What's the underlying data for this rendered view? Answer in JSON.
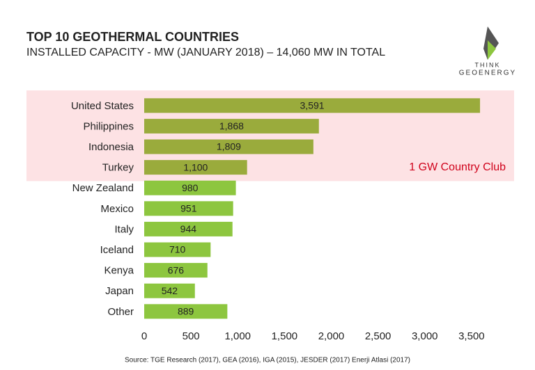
{
  "chart_data": {
    "type": "hbar",
    "title": "TOP 10 GEOTHERMAL COUNTRIES",
    "subtitle": "INSTALLED CAPACITY - MW (JANUARY 2018) – 14,060 MW IN TOTAL",
    "logo": [
      "THINK",
      "GEOENERGY"
    ],
    "source": "Source: TGE Research (2017), GEA (2016), IGA (2015), JESDER (2017) Enerji Atlasi (2017)",
    "categories": [
      "United States",
      "Philippines",
      "Indonesia",
      "Turkey",
      "New Zealand",
      "Mexico",
      "Italy",
      "Iceland",
      "Kenya",
      "Japan",
      "Other"
    ],
    "values": [
      3591,
      1868,
      1809,
      1100,
      980,
      951,
      944,
      710,
      676,
      542,
      889
    ],
    "value_labels": [
      "3,591",
      "1,868",
      "1,809",
      "1,100",
      "980",
      "951",
      "944",
      "710",
      "676",
      "542",
      "889"
    ],
    "colors": [
      "#9aab3c",
      "#9aab3c",
      "#9aab3c",
      "#9aab3c",
      "#8dc63f",
      "#8dc63f",
      "#8dc63f",
      "#8dc63f",
      "#8dc63f",
      "#8dc63f",
      "#8dc63f"
    ],
    "highlight": {
      "text": "1 GW Country Club",
      "text_color": "#d0021b",
      "band_color": "#fde2e4",
      "bar_color": "#9aab3c"
    },
    "xlim": [
      0,
      4000
    ],
    "xticks": [
      0,
      500,
      {
        "value": 1000,
        "label": "1,000"
      },
      {
        "value": 1500,
        "label": "1,500"
      },
      {
        "value": 2000,
        "label": "2,000"
      },
      {
        "value": 2500,
        "label": "2,500"
      },
      {
        "value": 3000,
        "label": "3,000"
      },
      {
        "value": 3500,
        "label": "3,500"
      }
    ],
    "grid": false
  }
}
